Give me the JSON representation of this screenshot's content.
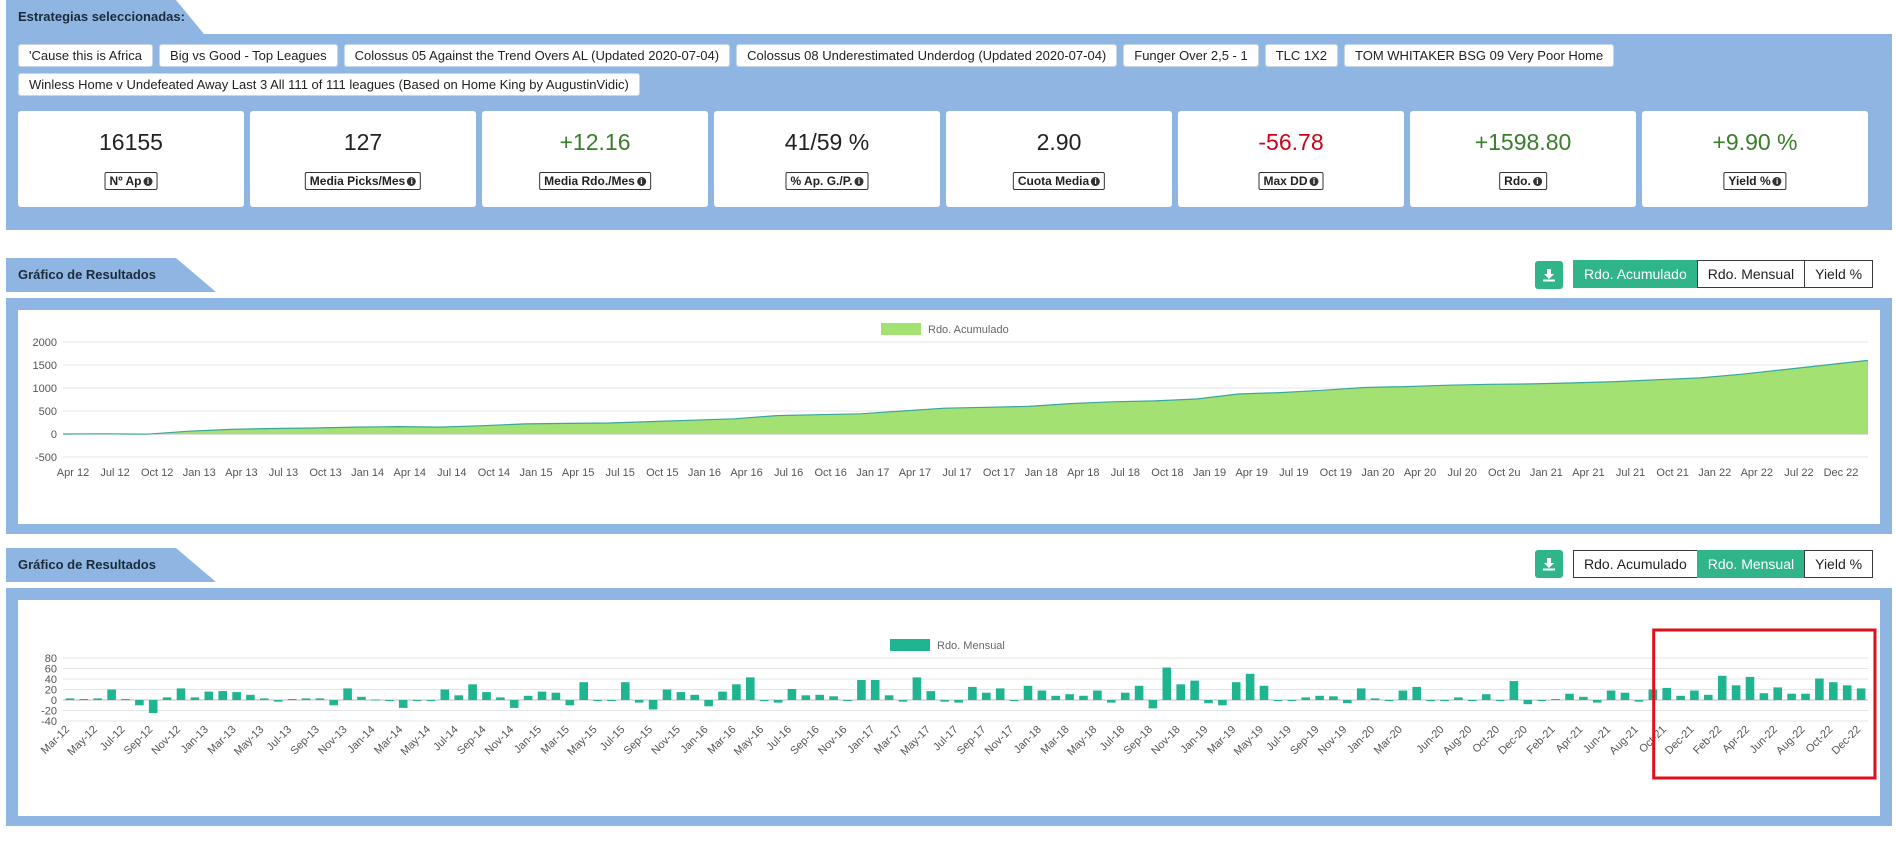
{
  "strategies": {
    "header": "Estrategias seleccionadas:",
    "tags": [
      "'Cause this is Africa",
      "Big vs Good - Top Leagues",
      "Colossus 05 Against the Trend Overs AL (Updated 2020-07-04)",
      "Colossus 08 Underestimated Underdog (Updated 2020-07-04)",
      "Funger Over 2,5 - 1",
      "TLC 1X2",
      "TOM WHITAKER BSG 09 Very Poor Home",
      "Winless Home v Undefeated Away Last 3 All 111 of 111 leagues (Based on Home King by AugustinVidic)"
    ]
  },
  "stats": [
    {
      "value": "16155",
      "label": "Nº Ap",
      "tone": "neutral"
    },
    {
      "value": "127",
      "label": "Media Picks/Mes",
      "tone": "neutral"
    },
    {
      "value": "+12.16",
      "label": "Media Rdo./Mes",
      "tone": "pos"
    },
    {
      "value": "41/59 %",
      "label": "% Ap. G./P.",
      "tone": "neutral"
    },
    {
      "value": "2.90",
      "label": "Cuota Media",
      "tone": "neutral"
    },
    {
      "value": "-56.78",
      "label": "Max DD",
      "tone": "neg"
    },
    {
      "value": "+1598.80",
      "label": "Rdo.",
      "tone": "pos"
    },
    {
      "value": "+9.90 %",
      "label": "Yield %",
      "tone": "pos"
    }
  ],
  "colors": {
    "accent": "#30b58a",
    "panel": "#8fb6e3",
    "area_fill": "#a3e272",
    "area_line": "#3aa6a0",
    "bar": "#20b591",
    "highlight": "#e0101a"
  },
  "chart1": {
    "header": "Gráfico de Resultados",
    "buttons": [
      "Rdo. Acumulado",
      "Rdo. Mensual",
      "Yield %"
    ],
    "active": 0,
    "download_icon": "download-icon"
  },
  "chart2": {
    "header": "Gráfico de Resultados",
    "buttons": [
      "Rdo. Acumulado",
      "Rdo. Mensual",
      "Yield %"
    ],
    "active": 1,
    "download_icon": "download-icon"
  },
  "chart_data": [
    {
      "type": "area",
      "legend": "Rdo. Acumulado",
      "ylim": [
        -500,
        2000
      ],
      "yticks": [
        2000,
        1500,
        1000,
        500,
        0,
        -500
      ],
      "xtick_labels": [
        "Apr 12",
        "Jul 12",
        "Oct 12",
        "Jan 13",
        "Apr 13",
        "Jul 13",
        "Oct 13",
        "Jan 14",
        "Apr 14",
        "Jul 14",
        "Oct 14",
        "Jan 15",
        "Apr 15",
        "Jul 15",
        "Oct 15",
        "Jan 16",
        "Apr 16",
        "Jul 16",
        "Oct 16",
        "Jan 17",
        "Apr 17",
        "Jul 17",
        "Oct 17",
        "Jan 18",
        "Apr 18",
        "Jul 18",
        "Oct 18",
        "Jan 19",
        "Apr 19",
        "Jul 19",
        "Oct 19",
        "Jan 20",
        "Apr 20",
        "Jul 20",
        "Oct 2u",
        "Jan 21",
        "Apr 21",
        "Jul 21",
        "Oct 21",
        "Jan 22",
        "Apr 22",
        "Jul 22",
        "Dec 22"
      ],
      "x": [
        "Apr 12",
        "Jul 12",
        "Oct 12",
        "Jan 13",
        "Apr 13",
        "Jul 13",
        "Oct 13",
        "Jan 14",
        "Apr 14",
        "Jul 14",
        "Oct 14",
        "Jan 15",
        "Apr 15",
        "Jul 15",
        "Oct 15",
        "Jan 16",
        "Apr 16",
        "Jul 16",
        "Oct 16",
        "Jan 17",
        "Apr 17",
        "Jul 17",
        "Oct 17",
        "Jan 18",
        "Apr 18",
        "Jul 18",
        "Oct 18",
        "Jan 19",
        "Apr 19",
        "Jul 19",
        "Oct 19",
        "Jan 20",
        "Apr 20",
        "Jul 20",
        "Oct 20",
        "Jan 21",
        "Apr 21",
        "Jul 21",
        "Oct 21",
        "Jan 22",
        "Apr 22",
        "Jul 22",
        "Oct 22",
        "Dec 22"
      ],
      "values": [
        0,
        5,
        -5,
        60,
        100,
        120,
        130,
        150,
        160,
        150,
        180,
        220,
        230,
        240,
        270,
        300,
        330,
        400,
        420,
        440,
        500,
        560,
        580,
        600,
        660,
        700,
        720,
        760,
        870,
        900,
        950,
        1010,
        1030,
        1060,
        1080,
        1090,
        1110,
        1140,
        1180,
        1220,
        1300,
        1400,
        1500,
        1599
      ]
    },
    {
      "type": "bar",
      "legend": "Rdo. Mensual",
      "ylim": [
        -40,
        80
      ],
      "yticks": [
        80,
        60,
        40,
        20,
        0,
        -20,
        -40
      ],
      "categories": [
        "Mar-12",
        "Apr-12",
        "May-12",
        "Jun-12",
        "Jul-12",
        "Aug-12",
        "Sep-12",
        "Oct-12",
        "Nov-12",
        "Dec-12",
        "Jan-13",
        "Feb-13",
        "Mar-13",
        "Apr-13",
        "May-13",
        "Jun-13",
        "Jul-13",
        "Aug-13",
        "Sep-13",
        "Oct-13",
        "Nov-13",
        "Dec-13",
        "Jan-14",
        "Feb-14",
        "Mar-14",
        "Apr-14",
        "May-14",
        "Jun-14",
        "Jul-14",
        "Aug-14",
        "Sep-14",
        "Oct-14",
        "Nov-14",
        "Dec-14",
        "Jan-15",
        "Feb-15",
        "Mar-15",
        "Apr-15",
        "May-15",
        "Jun-15",
        "Jul-15",
        "Aug-15",
        "Sep-15",
        "Oct-15",
        "Nov-15",
        "Dec-15",
        "Jan-16",
        "Feb-16",
        "Mar-16",
        "Apr-16",
        "May-16",
        "Jun-16",
        "Jul-16",
        "Aug-16",
        "Sep-16",
        "Oct-16",
        "Nov-16",
        "Dec-16",
        "Jan-17",
        "Feb-17",
        "Mar-17",
        "Apr-17",
        "May-17",
        "Jun-17",
        "Jul-17",
        "Aug-17",
        "Sep-17",
        "Oct-17",
        "Nov-17",
        "Dec-17",
        "Jan-18",
        "Feb-18",
        "Mar-18",
        "Apr-18",
        "May-18",
        "Jun-18",
        "Jul-18",
        "Aug-18",
        "Sep-18",
        "Oct-18",
        "Nov-18",
        "Dec-18",
        "Jan-19",
        "Feb-19",
        "Mar-19",
        "Apr-19",
        "May-19",
        "Jun-19",
        "Jul-19",
        "Aug-19",
        "Sep-19",
        "Oct-19",
        "Nov-19",
        "Dec-19",
        "Jan-20",
        "Feb-20",
        "Mar-20",
        "Apr-20",
        "May-20",
        "Jun-20",
        "Jul-20",
        "Aug-20",
        "Sep-20",
        "Oct-20",
        "Nov-20",
        "Dec-20",
        "Jan-21",
        "Feb-21",
        "Mar-21",
        "Apr-21",
        "May-21",
        "Jun-21",
        "Jul-21",
        "Aug-21",
        "Sep-21",
        "Oct-21",
        "Nov-21",
        "Dec-21",
        "Jan-22",
        "Feb-22",
        "Mar-22",
        "Apr-22",
        "May-22",
        "Jun-22",
        "Jul-22",
        "Aug-22",
        "Sep-22",
        "Oct-22",
        "Nov-22",
        "Dec-22"
      ],
      "values": [
        3,
        2,
        3,
        20,
        2,
        -10,
        -25,
        5,
        22,
        5,
        16,
        17,
        15,
        10,
        3,
        -3,
        2,
        3,
        3,
        -10,
        22,
        6,
        1,
        0,
        -15,
        0,
        0,
        20,
        9,
        30,
        15,
        5,
        -15,
        8,
        16,
        14,
        -10,
        34,
        0,
        0,
        34,
        -5,
        -18,
        20,
        15,
        10,
        -12,
        16,
        30,
        43,
        0,
        -5,
        21,
        9,
        10,
        7,
        -2,
        38,
        38,
        9,
        -3,
        43,
        17,
        -3,
        -5,
        25,
        14,
        22,
        0,
        27,
        18,
        8,
        11,
        8,
        18,
        -5,
        14,
        27,
        -16,
        62,
        30,
        37,
        -6,
        -10,
        34,
        50,
        27,
        0,
        0,
        5,
        8,
        7,
        -6,
        22,
        3,
        0,
        18,
        25,
        0,
        0,
        5,
        0,
        11,
        0,
        36,
        -8,
        0,
        2,
        12,
        6,
        -5,
        18,
        14,
        -3,
        20,
        23,
        8,
        18,
        10,
        46,
        28,
        44,
        13,
        24,
        12,
        12,
        41,
        34,
        28,
        22
      ],
      "xtick_labels": [
        "Mar-12",
        "May-12",
        "Jul-12",
        "Sep-12",
        "Nov-12",
        "Jan-13",
        "Mar-13",
        "May-13",
        "Jul-13",
        "Sep-13",
        "Nov-13",
        "Jan-14",
        "Mar-14",
        "May-14",
        "Jul-14",
        "Sep-14",
        "Nov-14",
        "Jan-15",
        "Mar-15",
        "May-15",
        "Jul-15",
        "Sep-15",
        "Nov-15",
        "Jan-16",
        "Mar-16",
        "May-16",
        "Jul-16",
        "Sep-16",
        "Nov-16",
        "Jan-17",
        "Mar-17",
        "May-17",
        "Jul-17",
        "Sep-17",
        "Nov-17",
        "Jan-18",
        "Mar-18",
        "May-18",
        "Jul-18",
        "Sep-18",
        "Nov-18",
        "Jan-19",
        "Mar-19",
        "May-19",
        "Jul-19",
        "Sep-19",
        "Nov-19",
        "Jan-20",
        "Mar-20",
        "Jun-20",
        "Aug-20",
        "Oct-20",
        "Dec-20",
        "Feb-21",
        "Apr-21",
        "Jun-21",
        "Aug-21",
        "Oct-21",
        "Dec-21",
        "Feb-22",
        "Apr-22",
        "Jun-22",
        "Aug-22",
        "Oct-22",
        "Dec-22"
      ],
      "highlight_range": [
        "Oct-21",
        "Dec-22"
      ]
    }
  ]
}
